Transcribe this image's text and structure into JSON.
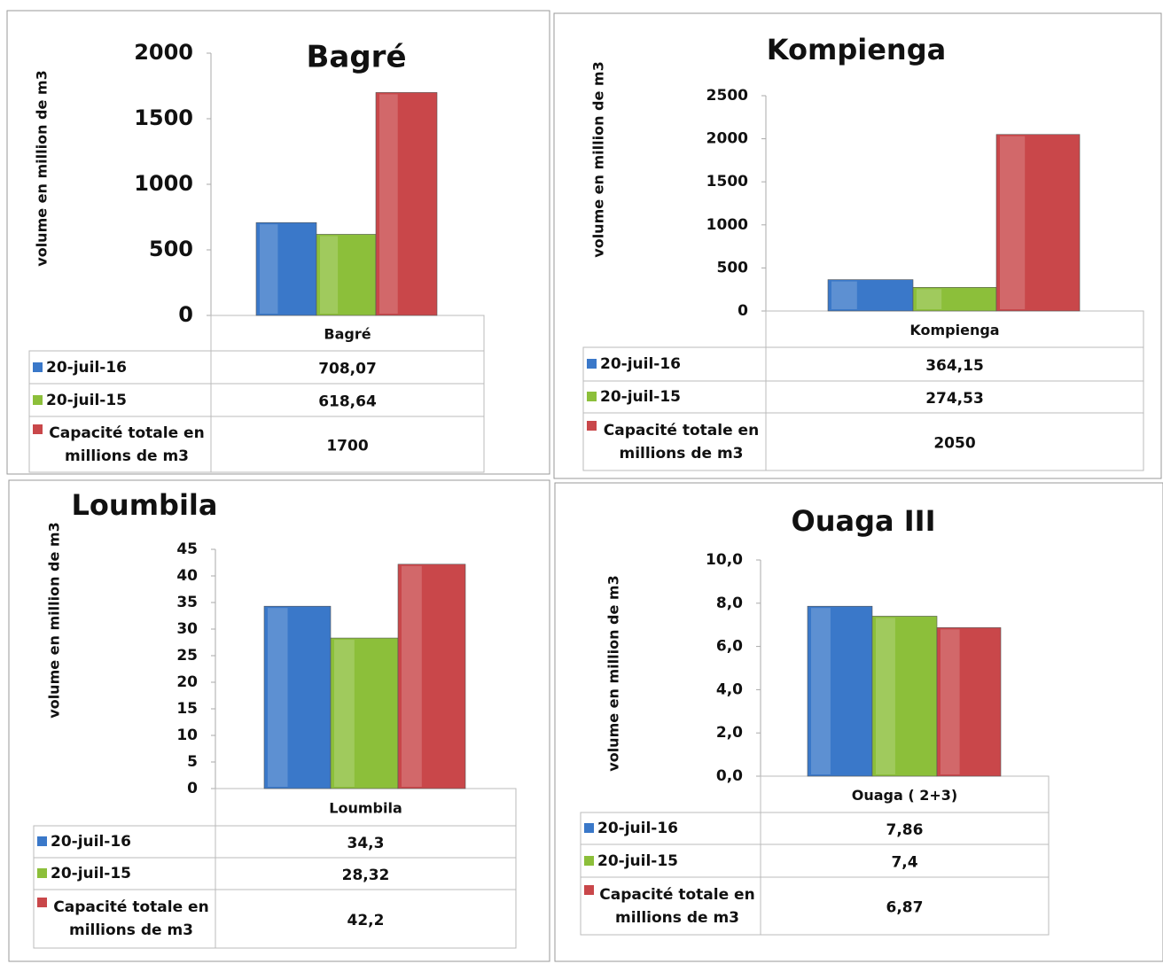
{
  "chart_data": [
    {
      "type": "bar",
      "title": "Bagré",
      "y_label": "volume en million de m3",
      "categories": [
        "Bagré"
      ],
      "series": [
        {
          "name": "20-juil-16",
          "color": "#3a78c9",
          "values": [
            708.07
          ],
          "value_labels": [
            "708,07"
          ]
        },
        {
          "name": "20-juil-15",
          "color": "#8cbf3a",
          "values": [
            618.64
          ],
          "value_labels": [
            "618,64"
          ]
        },
        {
          "name": "Capacité totale en millions de m3",
          "color": "#c9474a",
          "values": [
            1700
          ]
        }
      ],
      "ylim": [
        0,
        2000
      ],
      "yticks": [
        0,
        500,
        1000,
        1500,
        2000
      ]
    },
    {
      "type": "bar",
      "title": "Kompienga",
      "y_label": "volume en million de m3",
      "categories": [
        "Kompienga"
      ],
      "series": [
        {
          "name": "20-juil-16",
          "color": "#3a78c9",
          "values": [
            364.15
          ],
          "value_labels": [
            "364,15"
          ]
        },
        {
          "name": "20-juil-15",
          "color": "#8cbf3a",
          "values": [
            274.53
          ],
          "value_labels": [
            "274,53"
          ]
        },
        {
          "name": "Capacité totale en millions de m3",
          "color": "#c9474a",
          "values": [
            2050
          ]
        }
      ],
      "ylim": [
        0,
        2500
      ],
      "yticks": [
        0,
        500,
        1000,
        1500,
        2000,
        2500
      ]
    },
    {
      "type": "bar",
      "title": "Loumbila",
      "y_label": "volume en million de m3",
      "categories": [
        "Loumbila"
      ],
      "series": [
        {
          "name": "20-juil-16",
          "color": "#3a78c9",
          "values": [
            34.3
          ],
          "value_labels": [
            "34,3"
          ]
        },
        {
          "name": "20-juil-15",
          "color": "#8cbf3a",
          "values": [
            28.32
          ],
          "value_labels": [
            "28,32"
          ]
        },
        {
          "name": "Capacité totale en millions de m3",
          "color": "#c9474a",
          "values": [
            42.2
          ],
          "value_labels": [
            "42,2"
          ]
        }
      ],
      "ylim": [
        0,
        45
      ],
      "yticks": [
        0,
        5,
        10,
        15,
        20,
        25,
        30,
        35,
        40,
        45
      ]
    },
    {
      "type": "bar",
      "title": "Ouaga III",
      "y_label": "volume en million de m3",
      "categories": [
        "Ouaga ( 2+3)"
      ],
      "series": [
        {
          "name": "20-juil-16",
          "color": "#3a78c9",
          "values": [
            7.86
          ],
          "value_labels": [
            "7,86"
          ]
        },
        {
          "name": "20-juil-15",
          "color": "#8cbf3a",
          "values": [
            7.4
          ],
          "value_labels": [
            "7,4"
          ]
        },
        {
          "name": "Capacité totale en millions de m3",
          "color": "#c9474a",
          "values": [
            6.87
          ],
          "value_labels": [
            "6,87"
          ]
        }
      ],
      "ylim": [
        0,
        10
      ],
      "yticks": [
        {
          "value": 0,
          "label": "0,0"
        },
        {
          "value": 2,
          "label": "2,0"
        },
        {
          "value": 4,
          "label": "4,0"
        },
        {
          "value": 6,
          "label": "6,0"
        },
        {
          "value": 8,
          "label": "8,0"
        },
        {
          "value": 10,
          "label": "10,0"
        }
      ]
    }
  ]
}
